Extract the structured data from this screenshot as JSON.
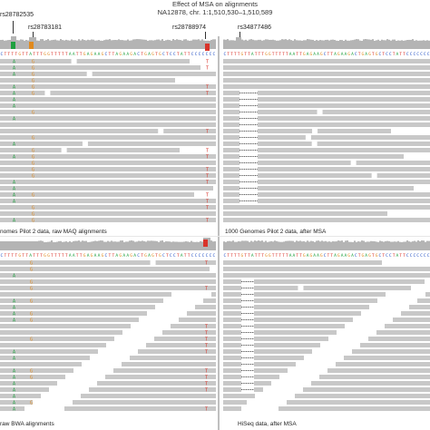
{
  "title": {
    "line1": "Effect of MSA on alignments",
    "line2": "NA12878, chr. 1:1,510,530–1,510,589"
  },
  "snps": {
    "rs28782535": "rs28782535",
    "rs28783181": "rs28783181",
    "rs28788974": "rs28788974",
    "rs34877486": "rs34877486"
  },
  "captions": {
    "top_left": "nomes Pilot 2 data, raw MAQ alignments",
    "top_right": "1000 Genomes Pilot 2 data, after MSA",
    "bottom_left": "raw BWA alignments",
    "bottom_right": "HiSeq data, after MSA"
  },
  "reference_sequence": "CTTTTGTTATTTGGTTTTTAATTGAGAAGCTTAGAAGACTGAGTGCTCCTATTCCCCCCC",
  "colors": {
    "read": "#c8c8c8",
    "coverage": "#b4b4b4",
    "A": "#1fa040",
    "C": "#2a56c6",
    "G": "#e08a1e",
    "T": "#d9342b",
    "insertion": "#7a3fb0",
    "deletion": "#222222"
  }
}
